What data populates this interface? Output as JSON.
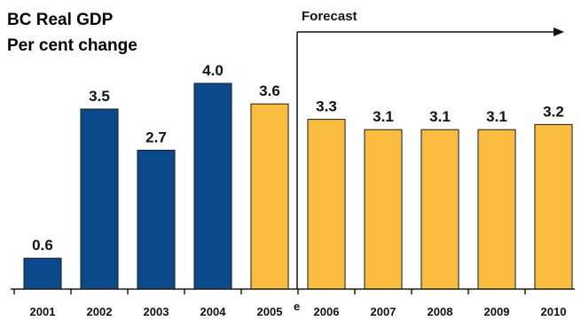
{
  "chart_data": {
    "type": "bar",
    "title": "BC Real GDP",
    "subtitle": "Per cent change",
    "categories": [
      "2001",
      "2002",
      "2003",
      "2004",
      "2005",
      "2006",
      "2007",
      "2008",
      "2009",
      "2010"
    ],
    "values": [
      0.6,
      3.5,
      2.7,
      4.0,
      3.6,
      3.3,
      3.1,
      3.1,
      3.1,
      3.2
    ],
    "data_labels": [
      "0.6",
      "3.5",
      "2.7",
      "4.0",
      "3.6",
      "3.3",
      "3.1",
      "3.1",
      "3.1",
      "3.2"
    ],
    "estimate_marker": {
      "category": "2005",
      "text": "e"
    },
    "forecast_annotation": {
      "text": "Forecast",
      "starts_after": "2005"
    },
    "series_colors": {
      "actual": "#0b4a8c",
      "estimate_forecast": "#fbbd3f"
    },
    "actual_categories": [
      "2001",
      "2002",
      "2003",
      "2004"
    ],
    "ylim": [
      0,
      4.6
    ],
    "grid": false,
    "legend": "none"
  }
}
